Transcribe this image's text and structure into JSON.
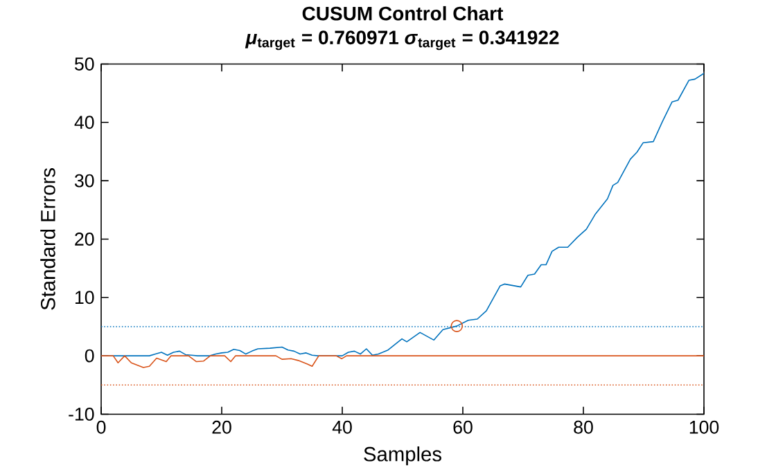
{
  "chart_data": {
    "type": "line",
    "title": "CUSUM  Control  Chart",
    "subtitle": "*μ*$_{target}$  =  0.760971  *σ*$_{target}$  =  0.341922",
    "xlabel": "Samples",
    "ylabel": "Standard Errors",
    "xlim": [
      0,
      100
    ],
    "ylim": [
      -10,
      50
    ],
    "xticks": [
      0,
      20,
      40,
      60,
      80,
      100
    ],
    "yticks": [
      -10,
      0,
      10,
      20,
      30,
      40,
      50
    ],
    "grid": false,
    "series": [
      {
        "color": "#0072bd",
        "x": [
          0,
          2,
          4,
          6,
          8,
          9,
          10,
          11,
          12,
          13,
          14,
          15,
          16,
          18,
          19,
          20,
          21,
          22,
          23,
          24,
          25,
          26,
          28,
          30,
          31,
          32,
          33,
          34,
          35,
          36,
          40,
          41,
          42,
          43,
          44,
          45,
          46,
          47.6,
          49.9,
          50.7,
          52.9,
          55.2,
          56.7,
          59,
          60.9,
          62.4,
          63.9,
          66.2,
          66.9,
          69.6,
          70.8,
          71.9,
          73,
          73.8,
          74.8,
          75.9,
          77.4,
          79,
          80.5,
          82,
          84,
          84.9,
          85.7,
          87.8,
          88.9,
          89.9,
          91.6,
          93.1,
          94.7,
          95.7,
          97.5,
          98.5,
          100
        ],
        "values": [
          0,
          0,
          0,
          0,
          0,
          0.3,
          0.6,
          0.1,
          0.6,
          0.8,
          0.2,
          0.1,
          0,
          0,
          0.3,
          0.5,
          0.6,
          1.1,
          0.9,
          0.3,
          0.8,
          1.2,
          1.3,
          1.5,
          1.0,
          0.8,
          0.3,
          0.5,
          0.1,
          0,
          0,
          0.6,
          0.8,
          0.3,
          1.2,
          0.1,
          0.3,
          1.0,
          2.9,
          2.4,
          4.0,
          2.7,
          4.5,
          5.1,
          6.1,
          6.3,
          7.7,
          12.0,
          12.3,
          11.8,
          13.8,
          14.0,
          15.6,
          15.6,
          17.9,
          18.6,
          18.6,
          20.3,
          21.7,
          24.3,
          26.9,
          29.2,
          29.7,
          33.7,
          34.9,
          36.5,
          36.7,
          40.1,
          43.5,
          43.8,
          47.2,
          47.4,
          48.4
        ]
      },
      {
        "color": "#d95319",
        "x": [
          0,
          2,
          2.8,
          3.9,
          5,
          7,
          8,
          9.2,
          10.8,
          11.6,
          14.5,
          15.8,
          17,
          18.1,
          20.5,
          21.5,
          22.3,
          29,
          30,
          31.5,
          32.7,
          34.2,
          35,
          36.1,
          39,
          39.9,
          40.7,
          100
        ],
        "values": [
          0,
          0,
          -1.2,
          0,
          -1.2,
          -2.0,
          -1.8,
          -0.4,
          -1.0,
          0,
          0,
          -1.0,
          -0.9,
          0,
          0,
          -1.0,
          0,
          0,
          -0.6,
          -0.5,
          -0.8,
          -1.4,
          -1.8,
          0,
          0,
          -0.5,
          0,
          0
        ]
      },
      {
        "type": "scatter",
        "color": "#d95319",
        "marker": "circle",
        "x": [
          59
        ],
        "values": [
          5.1
        ]
      }
    ],
    "ref_lines": [
      {
        "axis": "y",
        "value": 5,
        "color": "#0072bd",
        "line_style": "dotted"
      },
      {
        "axis": "y",
        "value": -5,
        "color": "#d95319",
        "line_style": "dotted"
      }
    ]
  }
}
